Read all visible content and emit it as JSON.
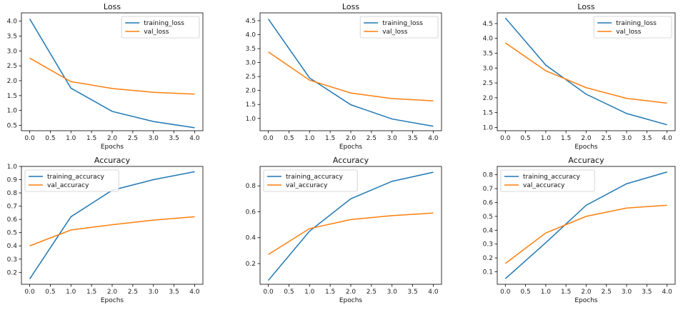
{
  "colors": {
    "training": "#1f77b4",
    "validation": "#ff7f0e"
  },
  "chart_data": [
    {
      "type": "line",
      "title": "Loss",
      "xlabel": "Epochs",
      "ylabel": "",
      "x": [
        0,
        1,
        2,
        3,
        4
      ],
      "xlim": [
        -0.2,
        4.2
      ],
      "ylim": [
        0.32,
        4.28
      ],
      "xticks": [
        "0.0",
        "0.5",
        "1.0",
        "1.5",
        "2.0",
        "2.5",
        "3.0",
        "3.5",
        "4.0"
      ],
      "yticks": [
        "0.5",
        "1.0",
        "1.5",
        "2.0",
        "2.5",
        "3.0",
        "3.5",
        "4.0"
      ],
      "legend": "upper right",
      "series": [
        {
          "name": "training_loss",
          "values": [
            4.08,
            1.75,
            0.97,
            0.63,
            0.42
          ]
        },
        {
          "name": "val_loss",
          "values": [
            2.76,
            1.97,
            1.74,
            1.61,
            1.55
          ]
        }
      ]
    },
    {
      "type": "line",
      "title": "Loss",
      "xlabel": "Epochs",
      "ylabel": "",
      "x": [
        0,
        1,
        2,
        3,
        4
      ],
      "xlim": [
        -0.2,
        4.2
      ],
      "ylim": [
        0.56,
        4.78
      ],
      "xticks": [
        "0.0",
        "0.5",
        "1.0",
        "1.5",
        "2.0",
        "2.5",
        "3.0",
        "3.5",
        "4.0"
      ],
      "yticks": [
        "1.0",
        "1.5",
        "2.0",
        "2.5",
        "3.0",
        "3.5",
        "4.0",
        "4.5"
      ],
      "legend": "upper right",
      "series": [
        {
          "name": "training_loss",
          "values": [
            4.56,
            2.45,
            1.49,
            0.98,
            0.72
          ]
        },
        {
          "name": "val_loss",
          "values": [
            3.38,
            2.37,
            1.91,
            1.71,
            1.63
          ]
        }
      ]
    },
    {
      "type": "line",
      "title": "Loss",
      "xlabel": "Epochs",
      "ylabel": "",
      "x": [
        0,
        1,
        2,
        3,
        4
      ],
      "xlim": [
        -0.2,
        4.2
      ],
      "ylim": [
        0.89,
        4.86
      ],
      "xticks": [
        "0.0",
        "0.5",
        "1.0",
        "1.5",
        "2.0",
        "2.5",
        "3.0",
        "3.5",
        "4.0"
      ],
      "yticks": [
        "1.0",
        "1.5",
        "2.0",
        "2.5",
        "3.0",
        "3.5",
        "4.0",
        "4.5"
      ],
      "legend": "upper right",
      "series": [
        {
          "name": "training_loss",
          "values": [
            4.69,
            3.1,
            2.12,
            1.47,
            1.09
          ]
        },
        {
          "name": "val_loss",
          "values": [
            3.85,
            2.91,
            2.34,
            1.98,
            1.82
          ]
        }
      ]
    },
    {
      "type": "line",
      "title": "Accuracy",
      "xlabel": "Epochs",
      "ylabel": "",
      "x": [
        0,
        1,
        2,
        3,
        4
      ],
      "xlim": [
        -0.2,
        4.2
      ],
      "ylim": [
        0.11,
        1.0
      ],
      "xticks": [
        "0.0",
        "0.5",
        "1.0",
        "1.5",
        "2.0",
        "2.5",
        "3.0",
        "3.5",
        "4.0"
      ],
      "yticks": [
        "0.2",
        "0.3",
        "0.4",
        "0.5",
        "0.6",
        "0.7",
        "0.8",
        "0.9",
        "1.0"
      ],
      "legend": "upper left",
      "series": [
        {
          "name": "training_accuracy",
          "values": [
            0.15,
            0.62,
            0.82,
            0.9,
            0.96
          ]
        },
        {
          "name": "val_accuracy",
          "values": [
            0.4,
            0.52,
            0.56,
            0.595,
            0.62
          ]
        }
      ]
    },
    {
      "type": "line",
      "title": "Accuracy",
      "xlabel": "Epochs",
      "ylabel": "",
      "x": [
        0,
        1,
        2,
        3,
        4
      ],
      "xlim": [
        -0.2,
        4.2
      ],
      "ylim": [
        0.04,
        0.95
      ],
      "xticks": [
        "0.0",
        "0.5",
        "1.0",
        "1.5",
        "2.0",
        "2.5",
        "3.0",
        "3.5",
        "4.0"
      ],
      "yticks": [
        "0.2",
        "0.4",
        "0.6",
        "0.8"
      ],
      "legend": "upper left",
      "series": [
        {
          "name": "training_accuracy",
          "values": [
            0.07,
            0.45,
            0.7,
            0.835,
            0.905
          ]
        },
        {
          "name": "val_accuracy",
          "values": [
            0.27,
            0.47,
            0.54,
            0.57,
            0.59
          ]
        }
      ]
    },
    {
      "type": "line",
      "title": "Accuracy",
      "xlabel": "Epochs",
      "ylabel": "",
      "x": [
        0,
        1,
        2,
        3,
        4
      ],
      "xlim": [
        -0.2,
        4.2
      ],
      "ylim": [
        0.01,
        0.86
      ],
      "xticks": [
        "0.0",
        "0.5",
        "1.0",
        "1.5",
        "2.0",
        "2.5",
        "3.0",
        "3.5",
        "4.0"
      ],
      "yticks": [
        "0.1",
        "0.2",
        "0.3",
        "0.4",
        "0.5",
        "0.6",
        "0.7",
        "0.8"
      ],
      "legend": "upper left",
      "series": [
        {
          "name": "training_accuracy",
          "values": [
            0.05,
            0.31,
            0.58,
            0.735,
            0.82
          ]
        },
        {
          "name": "val_accuracy",
          "values": [
            0.16,
            0.38,
            0.5,
            0.56,
            0.58
          ]
        }
      ]
    }
  ]
}
